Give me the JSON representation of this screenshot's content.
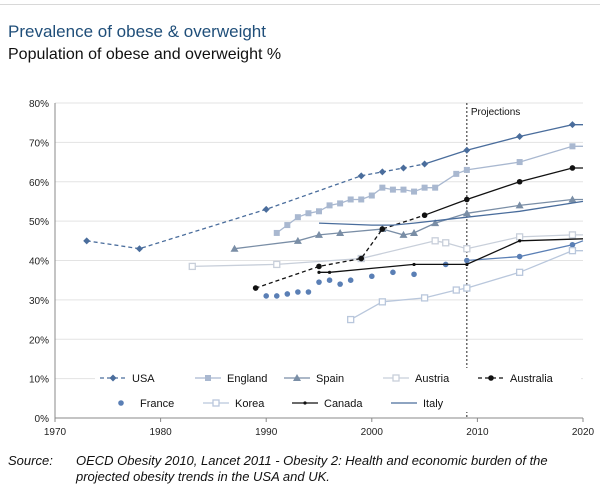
{
  "header": {
    "title": "Prevalence of obese & overweight",
    "subtitle": "Population of obese and overweight %"
  },
  "source": {
    "label": "Source:",
    "text": "OECD Obesity 2010, Lancet 2011 - Obesity 2: Health and economic burden of the projected obesity trends in the USA and UK."
  },
  "chart_data": {
    "type": "line",
    "title": "Population of obese and overweight %",
    "xlabel": "",
    "ylabel": "",
    "xlim": [
      1970,
      2020
    ],
    "ylim": [
      0,
      80
    ],
    "x_ticks": [
      1970,
      1980,
      1990,
      2000,
      2010,
      2020
    ],
    "y_ticks": [
      0,
      10,
      20,
      30,
      40,
      50,
      60,
      70,
      80
    ],
    "x_tick_labels": [
      "1970",
      "1980",
      "1990",
      "2000",
      "2010",
      "2020"
    ],
    "y_tick_labels": [
      "0%",
      "10%",
      "20%",
      "30%",
      "40%",
      "50%",
      "60%",
      "70%",
      "80%"
    ],
    "grid": "horizontal",
    "projection": {
      "x": 2009,
      "label": "Projections"
    },
    "series": [
      {
        "name": "USA",
        "color": "#4a6d9c",
        "marker": "diamond",
        "observed": [
          [
            1973,
            45
          ],
          [
            1978,
            43
          ],
          [
            1990,
            53
          ],
          [
            1999,
            61.5
          ],
          [
            2001,
            62.5
          ],
          [
            2003,
            63.5
          ],
          [
            2005,
            64.5
          ]
        ],
        "observed_style": "dashed",
        "projected": [
          [
            2005,
            64.5
          ],
          [
            2009,
            68
          ],
          [
            2014,
            71.5
          ],
          [
            2019,
            74.5
          ],
          [
            2020,
            74.5
          ]
        ]
      },
      {
        "name": "England",
        "color": "#a9b8d0",
        "marker": "square",
        "observed": [
          [
            1991,
            47
          ],
          [
            1992,
            49
          ],
          [
            1993,
            51
          ],
          [
            1994,
            52
          ],
          [
            1995,
            52.5
          ],
          [
            1996,
            54
          ],
          [
            1997,
            54.5
          ],
          [
            1998,
            55.5
          ],
          [
            1999,
            55.5
          ],
          [
            2000,
            56.5
          ],
          [
            2001,
            58.5
          ],
          [
            2002,
            58
          ],
          [
            2003,
            58
          ],
          [
            2004,
            57.5
          ],
          [
            2005,
            58.5
          ],
          [
            2006,
            58.5
          ],
          [
            2008,
            62
          ],
          [
            2009,
            63
          ]
        ],
        "observed_style": "solid",
        "projected": [
          [
            2009,
            63
          ],
          [
            2014,
            65
          ],
          [
            2019,
            69
          ],
          [
            2020,
            69
          ]
        ]
      },
      {
        "name": "Spain",
        "color": "#7a8ea6",
        "marker": "triangle",
        "observed": [
          [
            1987,
            43
          ],
          [
            1993,
            45
          ],
          [
            1995,
            46.5
          ],
          [
            1997,
            47
          ],
          [
            2001,
            48
          ],
          [
            2003,
            46.5
          ],
          [
            2004,
            47
          ],
          [
            2006,
            49.5
          ]
        ],
        "observed_style": "solid",
        "projected": [
          [
            2006,
            49.5
          ],
          [
            2009,
            52
          ],
          [
            2014,
            54
          ],
          [
            2019,
            55.5
          ],
          [
            2020,
            55.5
          ]
        ]
      },
      {
        "name": "Austria",
        "color": "#c8cfda",
        "marker": "square-open",
        "observed": [
          [
            1983,
            38.5
          ],
          [
            1991,
            39
          ],
          [
            1999,
            40.5
          ],
          [
            2006,
            45
          ],
          [
            2007,
            44.5
          ]
        ],
        "observed_style": "solid",
        "projected": [
          [
            2007,
            44.5
          ],
          [
            2009,
            43
          ],
          [
            2014,
            46
          ],
          [
            2019,
            46.5
          ],
          [
            2020,
            46.5
          ]
        ]
      },
      {
        "name": "Australia",
        "color": "#111111",
        "marker": "circle",
        "observed": [
          [
            1989,
            33
          ],
          [
            1995,
            38.5
          ],
          [
            1999,
            40.5
          ],
          [
            2001,
            48
          ],
          [
            2005,
            51.5
          ]
        ],
        "observed_style": "dashed",
        "projected": [
          [
            2005,
            51.5
          ],
          [
            2009,
            55.5
          ],
          [
            2014,
            60
          ],
          [
            2019,
            63.5
          ],
          [
            2020,
            63.5
          ]
        ]
      },
      {
        "name": "France",
        "color": "#5a7fb5",
        "marker": "circle",
        "observed": [
          [
            1990,
            31
          ],
          [
            1991,
            31
          ],
          [
            1992,
            31.5
          ],
          [
            1993,
            32
          ],
          [
            1994,
            32
          ],
          [
            1995,
            34.5
          ],
          [
            1996,
            35
          ],
          [
            1997,
            34
          ],
          [
            1998,
            35
          ],
          [
            2000,
            36
          ],
          [
            2002,
            37
          ],
          [
            2004,
            36.5
          ],
          [
            2007,
            39
          ],
          [
            2009,
            40
          ]
        ],
        "observed_style": "none",
        "projected": [
          [
            2009,
            40
          ],
          [
            2014,
            41
          ],
          [
            2019,
            44
          ],
          [
            2020,
            45
          ]
        ]
      },
      {
        "name": "Korea",
        "color": "#b9c7dc",
        "marker": "square-open",
        "observed": [
          [
            1998,
            25
          ],
          [
            2001,
            29.5
          ],
          [
            2005,
            30.5
          ],
          [
            2008,
            32.5
          ]
        ],
        "observed_style": "solid",
        "projected": [
          [
            2008,
            32.5
          ],
          [
            2009,
            33
          ],
          [
            2014,
            37
          ],
          [
            2019,
            42.5
          ],
          [
            2020,
            42.5
          ]
        ]
      },
      {
        "name": "Canada",
        "color": "#111111",
        "marker": "dot",
        "observed": [
          [
            1995,
            37
          ],
          [
            1996,
            37
          ],
          [
            2004,
            39
          ]
        ],
        "observed_style": "solid",
        "projected": [
          [
            2004,
            39
          ],
          [
            2009,
            39
          ],
          [
            2014,
            45
          ],
          [
            2020,
            45.5
          ]
        ]
      },
      {
        "name": "Italy",
        "color": "#4a6d9c",
        "marker": "none",
        "observed": [
          [
            1995,
            49.5
          ],
          [
            2000,
            49
          ],
          [
            2002,
            49
          ],
          [
            2004,
            49.5
          ]
        ],
        "observed_style": "solid",
        "projected": [
          [
            2004,
            49.5
          ],
          [
            2009,
            51
          ],
          [
            2014,
            52.5
          ],
          [
            2020,
            55
          ]
        ]
      }
    ]
  }
}
